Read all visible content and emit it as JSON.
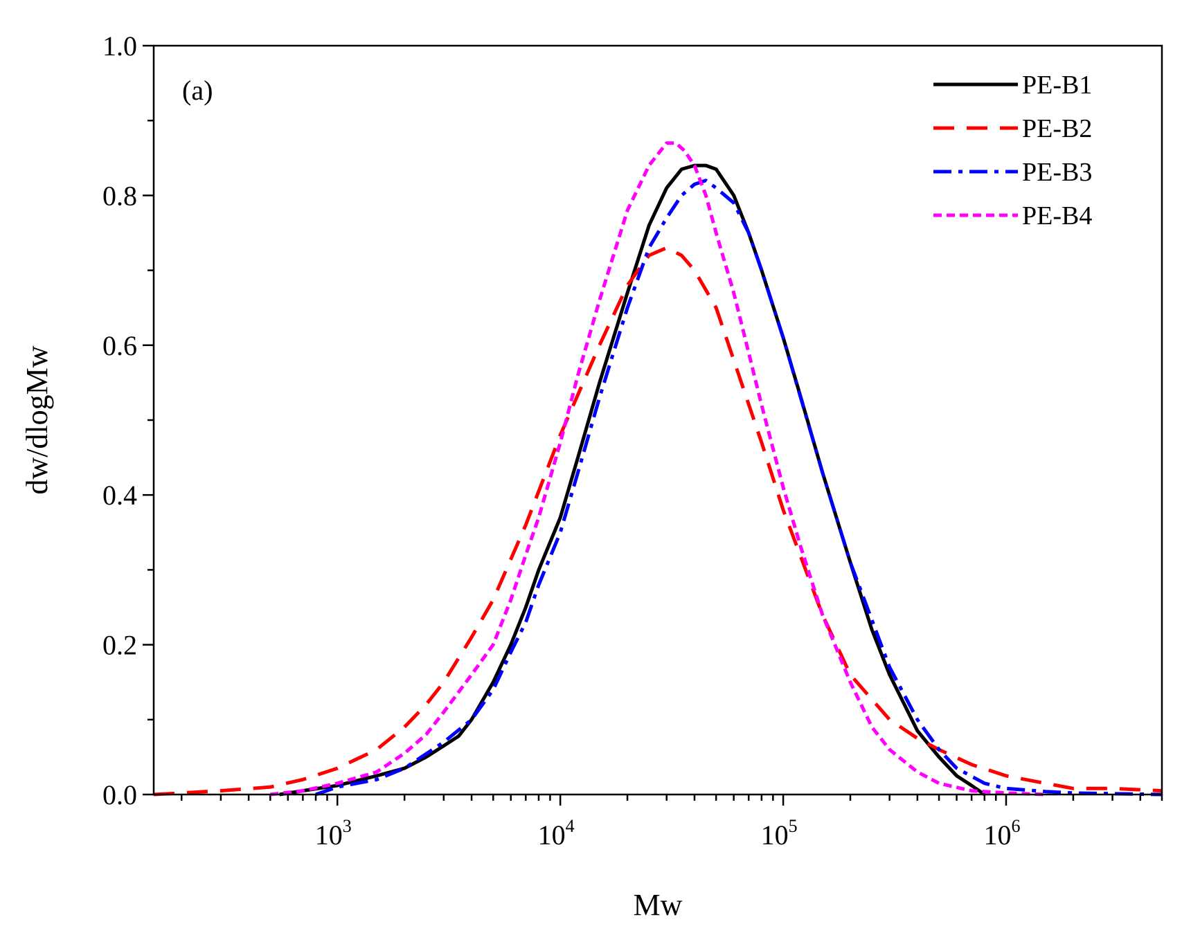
{
  "chart_data": {
    "type": "line",
    "title": "",
    "panel_label": "(a)",
    "xlabel": "Mw",
    "ylabel": "dw/dlogMw",
    "xscale": "log",
    "xlim": [
      150,
      5000000
    ],
    "ylim": [
      0,
      1.0
    ],
    "y_ticks": [
      "0.0",
      "0.2",
      "0.4",
      "0.6",
      "0.8",
      "1.0"
    ],
    "x_ticks": [
      {
        "base": "10",
        "exp": "3",
        "value": 1000
      },
      {
        "base": "10",
        "exp": "4",
        "value": 10000
      },
      {
        "base": "10",
        "exp": "5",
        "value": 100000
      },
      {
        "base": "10",
        "exp": "6",
        "value": 1000000
      }
    ],
    "legend_position": "top-right",
    "series": [
      {
        "name": "PE-B1",
        "color": "#000000",
        "dash": "solid",
        "x": [
          550,
          700,
          1000,
          1500,
          2000,
          2500,
          3000,
          3500,
          4000,
          5000,
          6000,
          7000,
          8000,
          10000,
          12000,
          15000,
          20000,
          25000,
          30000,
          35000,
          40000,
          45000,
          50000,
          60000,
          70000,
          80000,
          100000,
          120000,
          150000,
          200000,
          250000,
          300000,
          400000,
          500000,
          600000,
          700000,
          800000
        ],
        "y": [
          0.0,
          0.005,
          0.012,
          0.025,
          0.035,
          0.05,
          0.065,
          0.078,
          0.1,
          0.15,
          0.2,
          0.25,
          0.3,
          0.37,
          0.45,
          0.55,
          0.67,
          0.76,
          0.81,
          0.835,
          0.84,
          0.84,
          0.835,
          0.8,
          0.75,
          0.7,
          0.61,
          0.53,
          0.43,
          0.31,
          0.22,
          0.16,
          0.085,
          0.05,
          0.025,
          0.012,
          0.0
        ]
      },
      {
        "name": "PE-B2",
        "color": "#ff0000",
        "dash": "long-dash",
        "x": [
          150,
          300,
          500,
          700,
          1000,
          1500,
          2000,
          2500,
          3000,
          4000,
          5000,
          7000,
          10000,
          15000,
          20000,
          25000,
          30000,
          35000,
          40000,
          50000,
          60000,
          80000,
          100000,
          150000,
          200000,
          300000,
          400000,
          500000,
          700000,
          1000000,
          1500000,
          2000000,
          3000000,
          5000000
        ],
        "y": [
          0.0,
          0.005,
          0.01,
          0.02,
          0.035,
          0.06,
          0.09,
          0.12,
          0.15,
          0.21,
          0.26,
          0.36,
          0.48,
          0.6,
          0.68,
          0.72,
          0.73,
          0.72,
          0.7,
          0.65,
          0.58,
          0.47,
          0.38,
          0.24,
          0.16,
          0.1,
          0.075,
          0.06,
          0.04,
          0.025,
          0.015,
          0.008,
          0.008,
          0.005
        ]
      },
      {
        "name": "PE-B3",
        "color": "#0000ff",
        "dash": "dash-dot",
        "x": [
          800,
          1000,
          1500,
          2000,
          3000,
          4000,
          5000,
          6000,
          7000,
          8000,
          10000,
          12000,
          15000,
          20000,
          25000,
          30000,
          35000,
          40000,
          45000,
          50000,
          60000,
          70000,
          80000,
          100000,
          150000,
          200000,
          300000,
          400000,
          500000,
          600000,
          800000,
          1000000,
          1500000,
          2000000,
          5000000
        ],
        "y": [
          0.0,
          0.01,
          0.02,
          0.035,
          0.07,
          0.1,
          0.14,
          0.19,
          0.23,
          0.28,
          0.35,
          0.43,
          0.53,
          0.65,
          0.73,
          0.77,
          0.8,
          0.815,
          0.82,
          0.81,
          0.79,
          0.75,
          0.7,
          0.61,
          0.43,
          0.31,
          0.17,
          0.1,
          0.06,
          0.035,
          0.015,
          0.008,
          0.004,
          0.002,
          0.0
        ]
      },
      {
        "name": "PE-B4",
        "color": "#ff00ff",
        "dash": "short-dash",
        "x": [
          500,
          700,
          1000,
          1500,
          2000,
          2500,
          3000,
          4000,
          5000,
          6000,
          7000,
          8000,
          10000,
          12000,
          15000,
          20000,
          25000,
          30000,
          33000,
          36000,
          40000,
          45000,
          50000,
          60000,
          70000,
          80000,
          100000,
          120000,
          150000,
          200000,
          250000,
          300000,
          400000,
          500000,
          700000,
          1000000,
          1500000
        ],
        "y": [
          0.0,
          0.005,
          0.015,
          0.03,
          0.055,
          0.08,
          0.11,
          0.16,
          0.2,
          0.26,
          0.32,
          0.37,
          0.47,
          0.56,
          0.66,
          0.78,
          0.84,
          0.87,
          0.87,
          0.86,
          0.84,
          0.8,
          0.75,
          0.67,
          0.59,
          0.52,
          0.41,
          0.33,
          0.24,
          0.15,
          0.09,
          0.06,
          0.03,
          0.015,
          0.005,
          0.002,
          0.0
        ]
      }
    ]
  }
}
